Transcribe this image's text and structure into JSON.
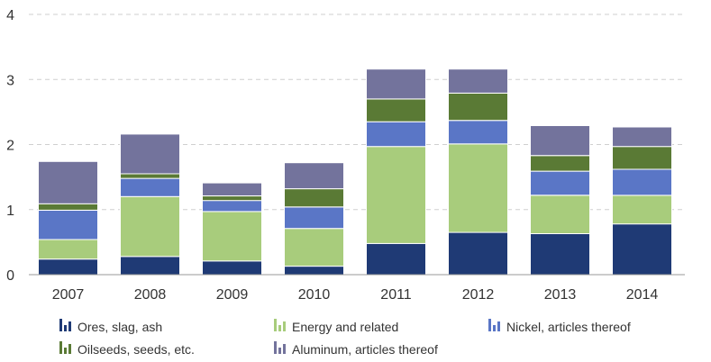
{
  "chart_data": {
    "type": "bar",
    "stacked": true,
    "categories": [
      "2007",
      "2008",
      "2009",
      "2010",
      "2011",
      "2012",
      "2013",
      "2014"
    ],
    "ylim": [
      0,
      4
    ],
    "yticks": [
      "0",
      "1",
      "2",
      "3",
      "4"
    ],
    "grid": true,
    "legend_position": "bottom",
    "series": [
      {
        "name": "Ores, slag, ash",
        "color": "#1f3a75",
        "values": [
          0.24,
          0.28,
          0.21,
          0.13,
          0.48,
          0.65,
          0.63,
          0.78
        ]
      },
      {
        "name": "Energy and related",
        "color": "#a8cc7c",
        "values": [
          0.3,
          0.92,
          0.76,
          0.58,
          1.49,
          1.36,
          0.59,
          0.44
        ]
      },
      {
        "name": "Nickel, articles thereof",
        "color": "#5a76c6",
        "values": [
          0.45,
          0.28,
          0.17,
          0.33,
          0.38,
          0.36,
          0.37,
          0.4
        ]
      },
      {
        "name": "Oilseeds, seeds, etc.",
        "color": "#5a7a35",
        "values": [
          0.1,
          0.07,
          0.07,
          0.28,
          0.35,
          0.42,
          0.24,
          0.35
        ]
      },
      {
        "name": "Aluminum, articles thereof",
        "color": "#73739c",
        "values": [
          0.65,
          0.61,
          0.2,
          0.4,
          0.46,
          0.37,
          0.46,
          0.3
        ]
      }
    ]
  }
}
